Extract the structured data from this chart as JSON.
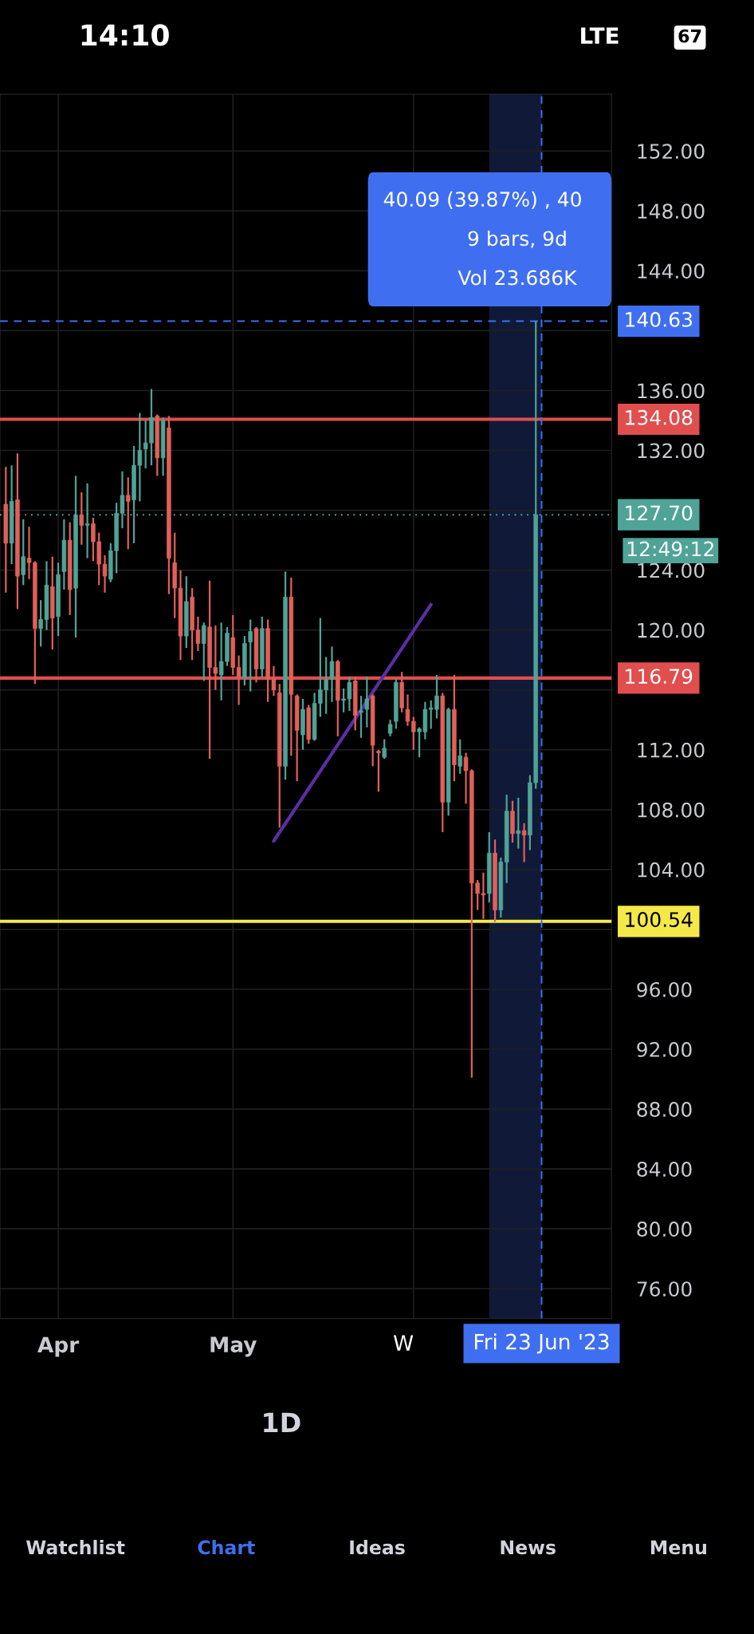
{
  "chart_data": {
    "type": "candlestick",
    "x": [
      "2023-03-23",
      "2023-03-24",
      "2023-03-25",
      "2023-03-26",
      "2023-03-27",
      "2023-03-28",
      "2023-03-29",
      "2023-03-30",
      "2023-03-31",
      "2023-04-01",
      "2023-04-02",
      "2023-04-03",
      "2023-04-04",
      "2023-04-05",
      "2023-04-06",
      "2023-04-07",
      "2023-04-08",
      "2023-04-09",
      "2023-04-10",
      "2023-04-11",
      "2023-04-12",
      "2023-04-13",
      "2023-04-14",
      "2023-04-15",
      "2023-04-16",
      "2023-04-17",
      "2023-04-18",
      "2023-04-19",
      "2023-04-20",
      "2023-04-21",
      "2023-04-22",
      "2023-04-23",
      "2023-04-24",
      "2023-04-25",
      "2023-04-26",
      "2023-04-27",
      "2023-04-28",
      "2023-04-29",
      "2023-04-30",
      "2023-05-01",
      "2023-05-02",
      "2023-05-03",
      "2023-05-04",
      "2023-05-05",
      "2023-05-06",
      "2023-05-07",
      "2023-05-08",
      "2023-05-09",
      "2023-05-10",
      "2023-05-11",
      "2023-05-12",
      "2023-05-13",
      "2023-05-14",
      "2023-05-15",
      "2023-05-16",
      "2023-05-17",
      "2023-05-18",
      "2023-05-19",
      "2023-05-20",
      "2023-05-21",
      "2023-05-22",
      "2023-05-23",
      "2023-05-24",
      "2023-05-25",
      "2023-05-26",
      "2023-05-27",
      "2023-05-28",
      "2023-05-29",
      "2023-05-30",
      "2023-05-31",
      "2023-06-01",
      "2023-06-02",
      "2023-06-03",
      "2023-06-04",
      "2023-06-05",
      "2023-06-06",
      "2023-06-07",
      "2023-06-08",
      "2023-06-09",
      "2023-06-10",
      "2023-06-11",
      "2023-06-12",
      "2023-06-13",
      "2023-06-14",
      "2023-06-15",
      "2023-06-16",
      "2023-06-17",
      "2023-06-18",
      "2023-06-19",
      "2023-06-20",
      "2023-06-21",
      "2023-06-22"
    ],
    "ohlc": [
      [
        128.4,
        130.9,
        122.5,
        125.8
      ],
      [
        125.8,
        131.0,
        124.4,
        128.6
      ],
      [
        128.7,
        131.8,
        121.4,
        123.6
      ],
      [
        123.7,
        127.4,
        123.0,
        124.9
      ],
      [
        124.8,
        126.9,
        123.4,
        124.5
      ],
      [
        124.5,
        124.6,
        116.4,
        120.1
      ],
      [
        120.1,
        122.0,
        118.9,
        120.7
      ],
      [
        120.7,
        124.6,
        120.0,
        123.0
      ],
      [
        122.9,
        124.9,
        118.7,
        120.8
      ],
      [
        120.9,
        124.5,
        119.6,
        123.7
      ],
      [
        123.9,
        127.4,
        122.7,
        126.0
      ],
      [
        126.0,
        127.2,
        121.0,
        122.7
      ],
      [
        122.8,
        130.3,
        119.5,
        127.7
      ],
      [
        127.7,
        129.2,
        125.7,
        127.0
      ],
      [
        127.0,
        129.8,
        124.8,
        127.1
      ],
      [
        127.1,
        127.5,
        124.6,
        125.9
      ],
      [
        125.9,
        126.5,
        123.0,
        124.4
      ],
      [
        124.4,
        125.0,
        122.5,
        123.6
      ],
      [
        123.4,
        125.8,
        123.2,
        125.3
      ],
      [
        125.3,
        128.5,
        123.8,
        127.8
      ],
      [
        127.8,
        130.6,
        126.8,
        129.0
      ],
      [
        129.0,
        130.2,
        125.4,
        128.6
      ],
      [
        128.7,
        132.3,
        125.8,
        131.0
      ],
      [
        131.0,
        134.5,
        128.6,
        132.0
      ],
      [
        132.1,
        134.0,
        130.8,
        132.5
      ],
      [
        132.5,
        136.1,
        131.0,
        134.2
      ],
      [
        134.3,
        134.4,
        130.3,
        131.5
      ],
      [
        131.5,
        134.2,
        130.3,
        134.0
      ],
      [
        133.5,
        134.3,
        122.4,
        124.8
      ],
      [
        124.5,
        126.5,
        120.8,
        122.8
      ],
      [
        122.8,
        124.0,
        118.0,
        119.6
      ],
      [
        119.6,
        123.6,
        118.8,
        121.9
      ],
      [
        122.2,
        122.8,
        118.0,
        120.0
      ],
      [
        120.0,
        120.9,
        118.6,
        119.1
      ],
      [
        119.1,
        120.5,
        116.6,
        120.3
      ],
      [
        120.2,
        123.3,
        111.4,
        117.5
      ],
      [
        117.5,
        120.3,
        116.0,
        117.1
      ],
      [
        117.0,
        120.5,
        115.3,
        117.9
      ],
      [
        117.9,
        120.2,
        117.6,
        119.8
      ],
      [
        119.5,
        121.0,
        117.0,
        117.5
      ],
      [
        117.5,
        118.3,
        115.0,
        116.8
      ],
      [
        116.8,
        119.6,
        116.3,
        119.1
      ],
      [
        119.2,
        120.7,
        115.9,
        119.9
      ],
      [
        120.1,
        120.2,
        116.5,
        117.4
      ],
      [
        117.4,
        120.9,
        116.8,
        120.1
      ],
      [
        120.1,
        120.7,
        115.2,
        116.7
      ],
      [
        116.7,
        117.6,
        115.6,
        116.0
      ],
      [
        115.8,
        116.4,
        106.8,
        110.9
      ],
      [
        110.9,
        123.9,
        110.0,
        122.2
      ],
      [
        122.2,
        123.5,
        111.6,
        115.7
      ],
      [
        115.6,
        115.7,
        109.9,
        113.3
      ],
      [
        113.0,
        115.4,
        112.0,
        114.7
      ],
      [
        114.8,
        115.0,
        112.4,
        112.7
      ],
      [
        112.7,
        115.8,
        112.6,
        115.1
      ],
      [
        115.1,
        120.8,
        114.2,
        116.0
      ],
      [
        116.0,
        118.2,
        114.4,
        116.7
      ],
      [
        116.7,
        118.9,
        115.2,
        117.9
      ],
      [
        117.9,
        118.0,
        112.9,
        115.3
      ],
      [
        115.3,
        116.1,
        114.5,
        115.4
      ],
      [
        115.4,
        116.9,
        114.6,
        116.5
      ],
      [
        116.6,
        116.9,
        113.3,
        114.3
      ],
      [
        114.5,
        115.6,
        112.8,
        114.6
      ],
      [
        114.7,
        116.9,
        113.5,
        115.4
      ],
      [
        115.6,
        115.7,
        110.9,
        112.3
      ],
      [
        111.9,
        112.0,
        109.2,
        111.8
      ],
      [
        111.5,
        112.7,
        111.4,
        112.1
      ],
      [
        113.1,
        114.0,
        112.9,
        113.7
      ],
      [
        113.9,
        116.7,
        113.4,
        116.5
      ],
      [
        116.5,
        117.2,
        114.5,
        114.8
      ],
      [
        114.7,
        115.7,
        113.6,
        113.9
      ],
      [
        113.9,
        114.2,
        112.0,
        113.2
      ],
      [
        113.2,
        113.5,
        111.5,
        113.4
      ],
      [
        113.2,
        115.2,
        112.7,
        114.7
      ],
      [
        114.7,
        115.3,
        113.4,
        114.8
      ],
      [
        114.7,
        117.0,
        114.1,
        115.6
      ],
      [
        115.6,
        115.8,
        106.5,
        108.5
      ],
      [
        108.5,
        114.8,
        107.6,
        114.7
      ],
      [
        114.7,
        117.0,
        109.9,
        111.0
      ],
      [
        110.9,
        112.7,
        110.4,
        111.6
      ],
      [
        111.5,
        111.8,
        108.4,
        110.6
      ],
      [
        110.6,
        110.7,
        90.1,
        103.1
      ],
      [
        103.1,
        103.3,
        101.3,
        102.4
      ],
      [
        102.4,
        103.8,
        100.7,
        102.3
      ],
      [
        102.4,
        106.5,
        101.8,
        105.1
      ],
      [
        105.1,
        106.0,
        100.5,
        101.3
      ],
      [
        101.3,
        104.8,
        100.8,
        104.5
      ],
      [
        104.5,
        109.0,
        103.1,
        107.9
      ],
      [
        107.9,
        108.6,
        105.8,
        106.4
      ],
      [
        106.4,
        108.8,
        105.4,
        106.6
      ],
      [
        106.6,
        107.1,
        104.5,
        106.3
      ],
      [
        106.3,
        110.3,
        105.3,
        109.8
      ],
      [
        109.8,
        140.63,
        109.4,
        127.7
      ]
    ],
    "colors": [
      "#e0605a",
      "#4fa397",
      "#e0605a",
      "#4fa397",
      "#e0605a",
      "#e0605a",
      "#4fa397",
      "#4fa397",
      "#e0605a",
      "#4fa397",
      "#4fa397",
      "#e0605a",
      "#4fa397",
      "#e0605a",
      "#4fa397",
      "#e0605a",
      "#e0605a",
      "#e0605a",
      "#4fa397",
      "#4fa397",
      "#4fa397",
      "#e0605a",
      "#4fa397",
      "#4fa397",
      "#4fa397",
      "#4fa397",
      "#e0605a",
      "#4fa397",
      "#e0605a",
      "#e0605a",
      "#e0605a",
      "#4fa397",
      "#e0605a",
      "#e0605a",
      "#4fa397",
      "#e0605a",
      "#e0605a",
      "#4fa397",
      "#4fa397",
      "#e0605a",
      "#e0605a",
      "#4fa397",
      "#4fa397",
      "#e0605a",
      "#4fa397",
      "#e0605a",
      "#e0605a",
      "#e0605a",
      "#4fa397",
      "#e0605a",
      "#e0605a",
      "#4fa397",
      "#e0605a",
      "#4fa397",
      "#4fa397",
      "#4fa397",
      "#4fa397",
      "#e0605a",
      "#4fa397",
      "#4fa397",
      "#e0605a",
      "#4fa397",
      "#4fa397",
      "#e0605a",
      "#e0605a",
      "#4fa397",
      "#4fa397",
      "#4fa397",
      "#e0605a",
      "#e0605a",
      "#e0605a",
      "#4fa397",
      "#4fa397",
      "#4fa397",
      "#4fa397",
      "#e0605a",
      "#4fa397",
      "#e0605a",
      "#4fa397",
      "#e0605a",
      "#e0605a",
      "#e0605a",
      "#e0605a",
      "#4fa397",
      "#e0605a",
      "#4fa397",
      "#4fa397",
      "#e0605a",
      "#4fa397",
      "#e0605a",
      "#4fa397",
      "#4fa397"
    ],
    "series": [
      {
        "type": "line",
        "color": "#5b2ea6",
        "x": [
          "2023-05-08",
          "2023-06-04"
        ],
        "values": [
          105.9,
          121.7
        ]
      }
    ],
    "xlim": [
      "2023-03-22",
      "2023-07-05"
    ],
    "xticks": [
      {
        "value": "2023-04-01",
        "label": "Apr"
      },
      {
        "value": "2023-05-01",
        "label": "May"
      },
      {
        "value": "2023-06-01",
        "label": null
      }
    ],
    "ylim": [
      74,
      155.8
    ],
    "yticks": [
      {
        "value": 76,
        "label": "76.00"
      },
      {
        "value": 80,
        "label": "80.00"
      },
      {
        "value": 84,
        "label": "84.00"
      },
      {
        "value": 88,
        "label": "88.00"
      },
      {
        "value": 92,
        "label": "92.00"
      },
      {
        "value": 96,
        "label": "96.00"
      },
      {
        "value": 100,
        "label": null
      },
      {
        "value": 104,
        "label": "104.00"
      },
      {
        "value": 108,
        "label": "108.00"
      },
      {
        "value": 112,
        "label": "112.00"
      },
      {
        "value": 116,
        "label": null
      },
      {
        "value": 120,
        "label": "120.00"
      },
      {
        "value": 124,
        "label": "124.00"
      },
      {
        "value": 128,
        "label": null
      },
      {
        "value": 132,
        "label": "132.00"
      },
      {
        "value": 136,
        "label": "136.00"
      },
      {
        "value": 140,
        "label": null
      },
      {
        "value": 144,
        "label": "144.00"
      },
      {
        "value": 148,
        "label": "148.00"
      },
      {
        "value": 152,
        "label": "152.00"
      }
    ],
    "grid": true,
    "ref_lines": [
      {
        "axis": "y",
        "value": 134.08,
        "label": "134.08",
        "color": "#e04e4e",
        "line_style": "solid"
      },
      {
        "axis": "y",
        "value": 116.79,
        "label": "116.79",
        "color": "#e04e4e",
        "line_style": "solid"
      },
      {
        "axis": "y",
        "value": 100.54,
        "label": "100.54",
        "color": "#f5e94a",
        "line_style": "solid"
      },
      {
        "axis": "y",
        "value": 140.63,
        "label": "140.63",
        "color": "#3f6ff0",
        "line_style": "dashed"
      },
      {
        "axis": "y",
        "value": 127.7,
        "label": "127.70",
        "color": "#4fa397",
        "line_style": "dotted"
      },
      {
        "axis": "x",
        "value": "2023-06-23",
        "label": "Fri 23 Jun '23",
        "color": "#3f6ff0",
        "line_style": "dashed"
      }
    ],
    "bands": [
      {
        "axis": "x",
        "from": "2023-06-14",
        "to": "2023-06-23",
        "color": "#101a38"
      }
    ],
    "annotations": [
      "40.09 (39.87%) , 40",
      "9 bars, 9d",
      "Vol 23.686K",
      "12:49:12",
      "W",
      "14:10",
      "LTE",
      "67",
      "1D",
      "Watchlist",
      "Chart",
      "Ideas",
      "News",
      "Menu"
    ]
  }
}
